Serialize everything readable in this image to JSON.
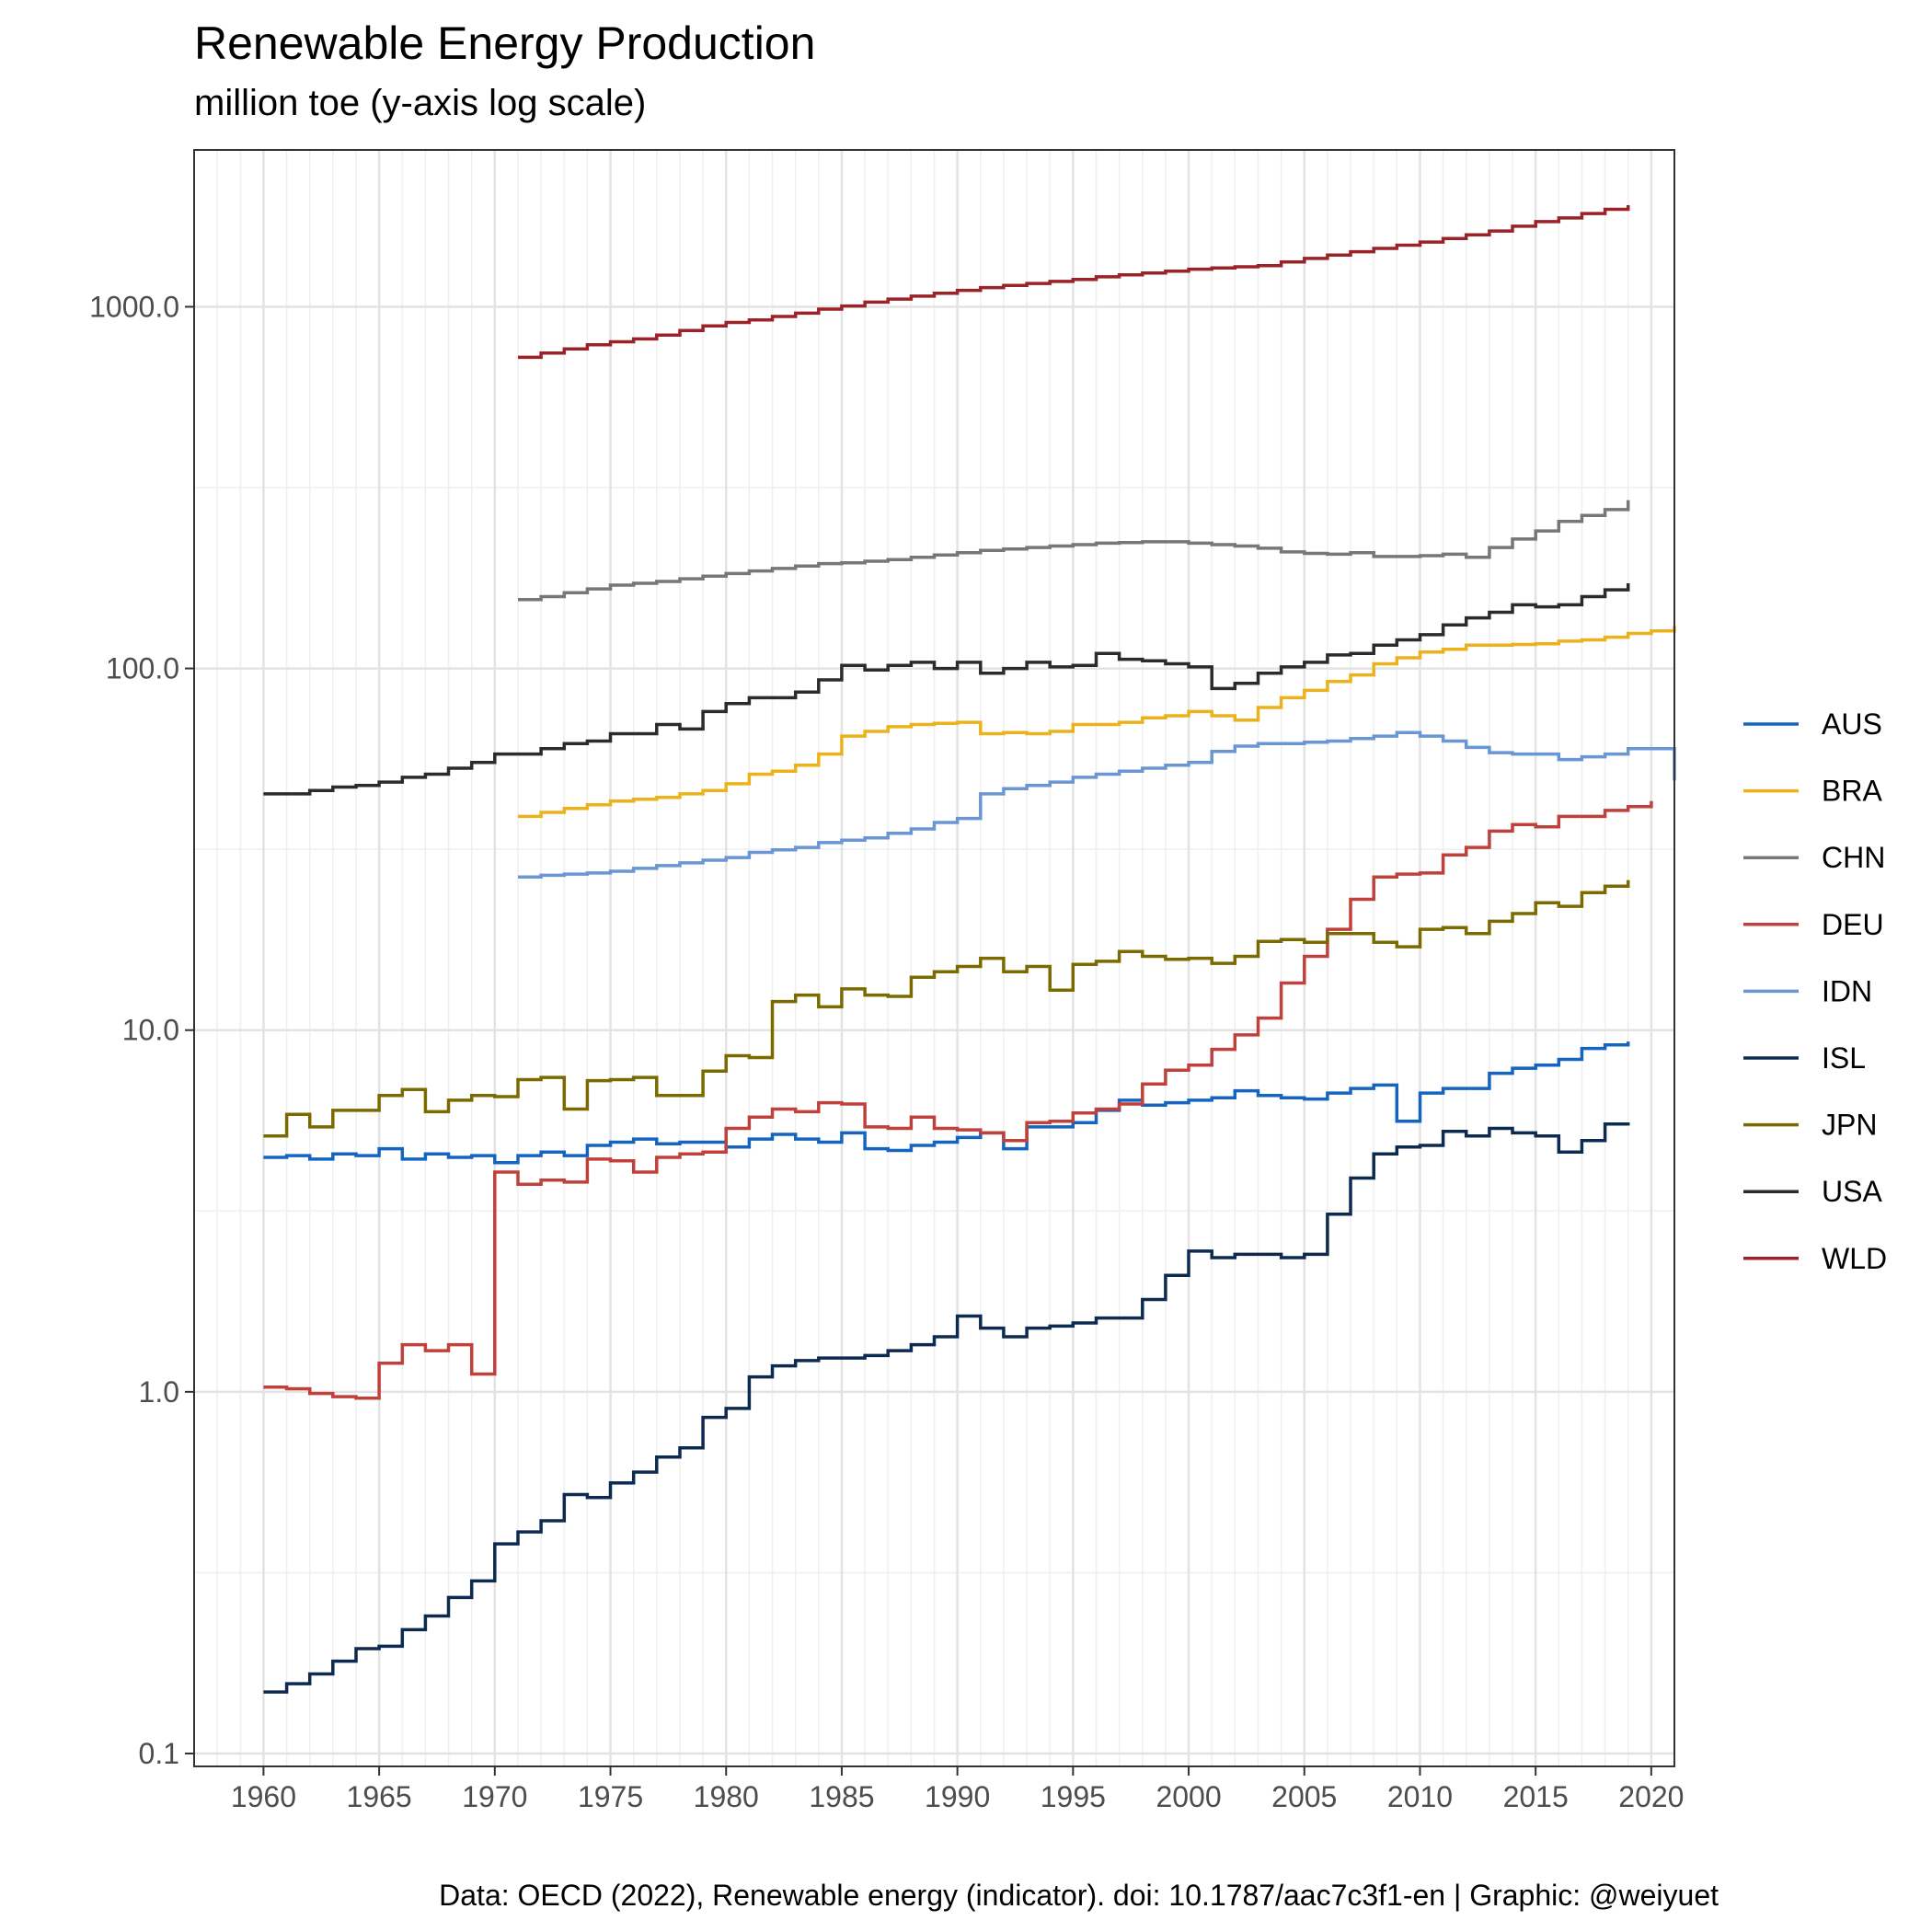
{
  "chart_data": {
    "type": "line",
    "step": true,
    "title": "Renewable Energy Production",
    "subtitle": "million toe (y-axis log scale)",
    "caption": "Data: OECD (2022), Renewable energy (indicator). doi: 10.1787/aac7c3f1-en | Graphic: @weiyuet",
    "y_scale": "log10",
    "xlim": [
      1957,
      2021
    ],
    "ylim": [
      0.1,
      2500
    ],
    "x_ticks": [
      1960,
      1965,
      1970,
      1975,
      1980,
      1985,
      1990,
      1995,
      2000,
      2005,
      2010,
      2015,
      2020
    ],
    "x_tick_labels": [
      "1960",
      "1965",
      "1970",
      "1975",
      "1980",
      "1985",
      "1990",
      "1995",
      "2000",
      "2005",
      "2010",
      "2015",
      "2020"
    ],
    "y_ticks": [
      0.1,
      1,
      10,
      100,
      1000
    ],
    "y_tick_labels": [
      "0.1",
      "1.0",
      "10.0",
      "100.0",
      "1000.0"
    ],
    "grid": true,
    "legend_position": "right",
    "series": [
      {
        "name": "AUS",
        "color": "#1565c0",
        "start": 1960,
        "values": [
          4.45,
          4.5,
          4.4,
          4.55,
          4.5,
          4.7,
          4.4,
          4.55,
          4.45,
          4.5,
          4.3,
          4.5,
          4.6,
          4.5,
          4.8,
          4.9,
          5.0,
          4.85,
          4.9,
          4.9,
          4.75,
          5.0,
          5.15,
          5.0,
          4.9,
          5.2,
          4.7,
          4.65,
          4.8,
          4.9,
          5.05,
          5.2,
          4.7,
          5.4,
          5.4,
          5.55,
          6.0,
          6.4,
          6.2,
          6.3,
          6.4,
          6.5,
          6.8,
          6.6,
          6.5,
          6.45,
          6.7,
          6.9,
          7.05,
          5.6,
          6.7,
          6.9,
          6.9,
          7.6,
          7.85,
          8.0,
          8.3,
          8.9,
          9.1,
          9.3
        ]
      },
      {
        "name": "BRA",
        "color": "#ebb21b",
        "start": 1971,
        "values": [
          39,
          40,
          41,
          42,
          43,
          43.5,
          44,
          45,
          46,
          48,
          51,
          52,
          54,
          58,
          65,
          67,
          69,
          70,
          70.5,
          71,
          66,
          66.5,
          66,
          67,
          70,
          70,
          71,
          73,
          74,
          76,
          74,
          72,
          78,
          83,
          87,
          92,
          96,
          103,
          107,
          111,
          113,
          116,
          116,
          116.5,
          117,
          119,
          120,
          122,
          125,
          127,
          131
        ]
      },
      {
        "name": "CHN",
        "color": "#777777",
        "start": 1971,
        "values": [
          155,
          158,
          162,
          166,
          170,
          172,
          174,
          177,
          180,
          183,
          186,
          189,
          192,
          195,
          196,
          198,
          200,
          203,
          206,
          209,
          212,
          214,
          216,
          218,
          220,
          222,
          223,
          224,
          224,
          222,
          220,
          218,
          215,
          210,
          208,
          207,
          209,
          204,
          204,
          205,
          207,
          203,
          216,
          228,
          240,
          255,
          265,
          275,
          292
        ]
      },
      {
        "name": "DEU",
        "color": "#c0403b",
        "start": 1960,
        "values": [
          1.03,
          1.02,
          0.99,
          0.97,
          0.96,
          1.2,
          1.35,
          1.3,
          1.35,
          1.12,
          4.05,
          3.75,
          3.85,
          3.8,
          4.4,
          4.35,
          4.05,
          4.45,
          4.55,
          4.6,
          5.35,
          5.75,
          6.05,
          5.95,
          6.3,
          6.25,
          5.4,
          5.35,
          5.75,
          5.35,
          5.3,
          5.2,
          4.95,
          5.55,
          5.6,
          5.9,
          6.05,
          6.25,
          7.1,
          7.75,
          8.0,
          8.85,
          9.7,
          10.8,
          13.5,
          16.0,
          19.0,
          23.0,
          26.5,
          27.0,
          27.2,
          30.5,
          32.0,
          35.5,
          37.0,
          36.5,
          39.0,
          39.0,
          40.5,
          41.5,
          43.0
        ]
      },
      {
        "name": "IDN",
        "color": "#6a96d4",
        "start": 1971,
        "values": [
          26.5,
          26.8,
          27.0,
          27.2,
          27.5,
          28.0,
          28.5,
          29.0,
          29.5,
          30.0,
          31.0,
          31.5,
          32.0,
          33.0,
          33.5,
          34.0,
          35.0,
          36.0,
          37.5,
          38.5,
          45.0,
          46.5,
          47.5,
          48.5,
          50.0,
          51.0,
          52.0,
          53.0,
          54.0,
          55.0,
          59.0,
          61.0,
          62.0,
          62.0,
          62.5,
          63.0,
          64.0,
          65.0,
          66.5,
          65.0,
          63.0,
          60.5,
          58.5,
          58.0,
          58.0,
          56.0,
          57.0,
          58.0,
          60.0,
          60.0,
          49.0
        ]
      },
      {
        "name": "ISL",
        "color": "#0d2a50",
        "start": 1960,
        "values": [
          0.148,
          0.156,
          0.166,
          0.18,
          0.195,
          0.198,
          0.22,
          0.24,
          0.27,
          0.3,
          0.38,
          0.41,
          0.44,
          0.52,
          0.51,
          0.56,
          0.6,
          0.66,
          0.7,
          0.85,
          0.9,
          1.1,
          1.18,
          1.22,
          1.24,
          1.24,
          1.26,
          1.3,
          1.35,
          1.42,
          1.62,
          1.5,
          1.42,
          1.5,
          1.52,
          1.55,
          1.6,
          1.6,
          1.8,
          2.1,
          2.45,
          2.35,
          2.4,
          2.4,
          2.35,
          2.4,
          3.1,
          3.9,
          4.55,
          4.75,
          4.8,
          5.25,
          5.1,
          5.35,
          5.2,
          5.1,
          4.6,
          4.95,
          5.5,
          5.45
        ]
      },
      {
        "name": "JPN",
        "color": "#7a6a00",
        "start": 1960,
        "values": [
          5.1,
          5.85,
          5.4,
          6.0,
          6.0,
          6.6,
          6.85,
          5.95,
          6.4,
          6.6,
          6.55,
          7.3,
          7.4,
          6.05,
          7.25,
          7.3,
          7.4,
          6.6,
          6.6,
          7.7,
          8.5,
          8.4,
          12.0,
          12.5,
          11.6,
          13.0,
          12.5,
          12.4,
          14.0,
          14.5,
          15.0,
          15.8,
          14.5,
          15.0,
          12.9,
          15.2,
          15.5,
          16.5,
          16.0,
          15.7,
          15.8,
          15.3,
          16.0,
          17.6,
          17.8,
          17.5,
          18.5,
          18.5,
          17.5,
          17.0,
          19.0,
          19.2,
          18.5,
          20.0,
          21.0,
          22.5,
          22.0,
          24.0,
          25.0,
          26.0
        ]
      },
      {
        "name": "USA",
        "color": "#2b2b2b",
        "start": 1960,
        "values": [
          45,
          45,
          46,
          47,
          47.5,
          48.5,
          50,
          51,
          53,
          55,
          58,
          58,
          60,
          62,
          63,
          66,
          66,
          70,
          68,
          76,
          80,
          83,
          83,
          86,
          93,
          102,
          99,
          102,
          104,
          100,
          104,
          97,
          100,
          104,
          101,
          102,
          110,
          106,
          105,
          103,
          101,
          88,
          91,
          97,
          101,
          104,
          109,
          110,
          116,
          120,
          124,
          132,
          138,
          143,
          150,
          148,
          150,
          158,
          165,
          172
        ]
      },
      {
        "name": "WLD",
        "color": "#9b2226",
        "start": 1971,
        "values": [
          725,
          745,
          765,
          785,
          800,
          815,
          835,
          860,
          885,
          905,
          920,
          940,
          960,
          985,
          1005,
          1030,
          1050,
          1070,
          1090,
          1110,
          1130,
          1145,
          1160,
          1175,
          1190,
          1210,
          1225,
          1240,
          1255,
          1270,
          1280,
          1290,
          1300,
          1330,
          1360,
          1390,
          1420,
          1450,
          1480,
          1510,
          1545,
          1580,
          1620,
          1670,
          1720,
          1760,
          1810,
          1860,
          1910
        ]
      }
    ]
  }
}
